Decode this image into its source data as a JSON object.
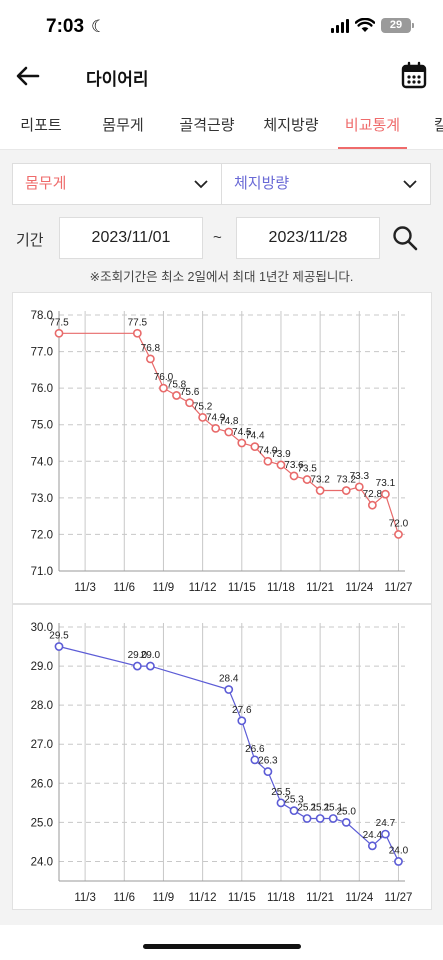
{
  "status": {
    "time": "7:03",
    "battery": "29"
  },
  "header": {
    "title": "다이어리"
  },
  "tabs": [
    {
      "label": "리포트",
      "active": false
    },
    {
      "label": "몸무게",
      "active": false
    },
    {
      "label": "골격근량",
      "active": false
    },
    {
      "label": "체지방량",
      "active": false
    },
    {
      "label": "비교통계",
      "active": true
    },
    {
      "label": "칼",
      "active": false
    }
  ],
  "filters": {
    "left_select": "몸무게",
    "right_select": "체지방량",
    "period_label": "기간",
    "start_date": "2023/11/01",
    "separator": "~",
    "end_date": "2023/11/28",
    "notice": "※조회기간은 최소 2일에서 최대 1년간 제공됩니다."
  },
  "colors": {
    "accent": "#ef6b6b",
    "weight_series": "#e86a6a",
    "fat_series": "#5c5cd6"
  },
  "chart_data": [
    {
      "type": "line",
      "series_color": "#e86a6a",
      "ylim": [
        71.0,
        78.0
      ],
      "yticks": [
        "78.0",
        "77.0",
        "76.0",
        "75.0",
        "74.0",
        "73.0",
        "72.0",
        "71.0"
      ],
      "xlim": [
        1,
        27.5
      ],
      "xticks": [
        3,
        6,
        9,
        12,
        15,
        18,
        21,
        24,
        27
      ],
      "xtick_labels": [
        "11/3",
        "11/6",
        "11/9",
        "11/12",
        "11/15",
        "11/18",
        "11/21",
        "11/24",
        "11/27"
      ],
      "grid": true,
      "points": [
        {
          "day": 1,
          "value": 77.5,
          "label": "77.5"
        },
        {
          "day": 7,
          "value": 77.5,
          "label": "77.5"
        },
        {
          "day": 8,
          "value": 76.8,
          "label": "76.8"
        },
        {
          "day": 9,
          "value": 76.0,
          "label": "76.0"
        },
        {
          "day": 10,
          "value": 75.8,
          "label": "75.8"
        },
        {
          "day": 11,
          "value": 75.6,
          "label": "75.6"
        },
        {
          "day": 12,
          "value": 75.2,
          "label": "75.2"
        },
        {
          "day": 13,
          "value": 74.9,
          "label": "74.9"
        },
        {
          "day": 14,
          "value": 74.8,
          "label": "74.8"
        },
        {
          "day": 15,
          "value": 74.5,
          "label": "74.5"
        },
        {
          "day": 16,
          "value": 74.4,
          "label": "74.4"
        },
        {
          "day": 17,
          "value": 74.0,
          "label": "74.0"
        },
        {
          "day": 18,
          "value": 73.9,
          "label": "73.9"
        },
        {
          "day": 19,
          "value": 73.6,
          "label": "73.6"
        },
        {
          "day": 20,
          "value": 73.5,
          "label": "73.5"
        },
        {
          "day": 21,
          "value": 73.2,
          "label": "73.2"
        },
        {
          "day": 23,
          "value": 73.2,
          "label": "73.2"
        },
        {
          "day": 24,
          "value": 73.3,
          "label": "73.3"
        },
        {
          "day": 25,
          "value": 72.8,
          "label": "72.8"
        },
        {
          "day": 26,
          "value": 73.1,
          "label": "73.1"
        },
        {
          "day": 27,
          "value": 72.0,
          "label": "72.0"
        }
      ]
    },
    {
      "type": "line",
      "series_color": "#5c5cd6",
      "ylim": [
        23.5,
        30.0
      ],
      "yticks": [
        "30.0",
        "29.0",
        "28.0",
        "27.0",
        "26.0",
        "25.0",
        "24.0"
      ],
      "ytick_values": [
        30,
        29,
        28,
        27,
        26,
        25,
        24
      ],
      "xlim": [
        1,
        27.5
      ],
      "xticks": [
        3,
        6,
        9,
        12,
        15,
        18,
        21,
        24,
        27
      ],
      "xtick_labels": [
        "11/3",
        "11/6",
        "11/9",
        "11/12",
        "11/15",
        "11/18",
        "11/21",
        "11/24",
        "11/27"
      ],
      "grid": true,
      "points": [
        {
          "day": 1,
          "value": 29.5,
          "label": "29.5"
        },
        {
          "day": 7,
          "value": 29.0,
          "label": "29.0"
        },
        {
          "day": 8,
          "value": 29.0,
          "label": "29.0"
        },
        {
          "day": 14,
          "value": 28.4,
          "label": "28.4"
        },
        {
          "day": 15,
          "value": 27.6,
          "label": "27.6"
        },
        {
          "day": 16,
          "value": 26.6,
          "label": "26.6"
        },
        {
          "day": 17,
          "value": 26.3,
          "label": "26.3"
        },
        {
          "day": 18,
          "value": 25.5,
          "label": "25.5"
        },
        {
          "day": 19,
          "value": 25.3,
          "label": "25.3"
        },
        {
          "day": 20,
          "value": 25.1,
          "label": "25.1"
        },
        {
          "day": 21,
          "value": 25.1,
          "label": "25.1"
        },
        {
          "day": 22,
          "value": 25.1,
          "label": "25.1"
        },
        {
          "day": 23,
          "value": 25.0,
          "label": "25.0"
        },
        {
          "day": 25,
          "value": 24.4,
          "label": "24.4"
        },
        {
          "day": 26,
          "value": 24.7,
          "label": "24.7"
        },
        {
          "day": 27,
          "value": 24.0,
          "label": "24.0"
        }
      ]
    }
  ]
}
